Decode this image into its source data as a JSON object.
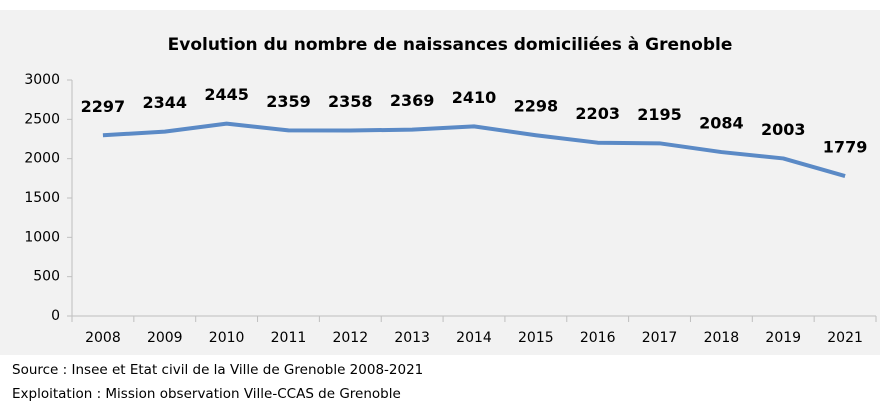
{
  "chart_data": {
    "type": "line",
    "title": "Evolution du nombre de naissances domiciliées à Grenoble",
    "categories": [
      "2008",
      "2009",
      "2010",
      "2011",
      "2012",
      "2013",
      "2014",
      "2015",
      "2016",
      "2017",
      "2018",
      "2019",
      "2021"
    ],
    "series": [
      {
        "name": "Naissances",
        "color": "#5b8ac6",
        "values": [
          2297,
          2344,
          2445,
          2359,
          2358,
          2369,
          2410,
          2298,
          2203,
          2195,
          2084,
          2003,
          1779
        ]
      }
    ],
    "ylim": [
      0,
      3000
    ],
    "yticks": [
      0,
      500,
      1000,
      1500,
      2000,
      2500,
      3000
    ],
    "grid": false,
    "notes": [
      "Source : Insee et Etat civil de la Ville de Grenoble 2008-2021",
      "Exploitation : Mission observation Ville-CCAS de Grenoble"
    ]
  }
}
